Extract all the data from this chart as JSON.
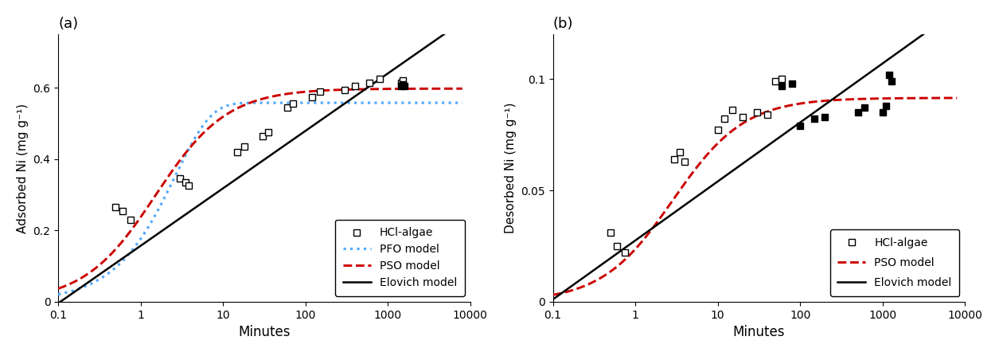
{
  "panel_a": {
    "label": "(a)",
    "ylabel": "Adsorbed Ni (mg g⁻¹)",
    "xlabel": "Minutes",
    "xlim": [
      0.1,
      10000
    ],
    "ylim": [
      0,
      0.75
    ],
    "yticks": [
      0,
      0.2,
      0.4,
      0.6
    ],
    "data_open": [
      [
        0.5,
        0.265
      ],
      [
        0.6,
        0.255
      ],
      [
        0.75,
        0.23
      ],
      [
        3.0,
        0.345
      ],
      [
        3.5,
        0.335
      ],
      [
        3.8,
        0.325
      ],
      [
        15,
        0.42
      ],
      [
        18,
        0.435
      ],
      [
        30,
        0.465
      ],
      [
        35,
        0.475
      ],
      [
        60,
        0.545
      ],
      [
        70,
        0.555
      ],
      [
        120,
        0.575
      ],
      [
        150,
        0.59
      ],
      [
        300,
        0.595
      ],
      [
        400,
        0.605
      ],
      [
        600,
        0.615
      ],
      [
        800,
        0.625
      ],
      [
        1440,
        0.615
      ],
      [
        1500,
        0.62
      ]
    ],
    "data_filled": [
      [
        1440,
        0.605
      ],
      [
        1500,
        0.61
      ],
      [
        1600,
        0.605
      ]
    ],
    "elovich_params": {
      "a": 0.157,
      "b": 0.07
    },
    "pfo_params": {
      "qe": 0.558,
      "k1": 0.38
    },
    "pso_params": {
      "qe": 0.598,
      "k2": 1.1
    },
    "legend_items": [
      "HCl-algae",
      "PFO model",
      "PSO model",
      "Elovich model"
    ]
  },
  "panel_b": {
    "label": "(b)",
    "ylabel": "Desorbed Ni (mg g⁻¹)",
    "xlabel": "Minutes",
    "xlim": [
      0.1,
      10000
    ],
    "ylim": [
      0,
      0.12
    ],
    "yticks": [
      0,
      0.05,
      0.1
    ],
    "data_open": [
      [
        0.5,
        0.031
      ],
      [
        0.6,
        0.025
      ],
      [
        0.75,
        0.022
      ],
      [
        3.0,
        0.064
      ],
      [
        3.5,
        0.067
      ],
      [
        4.0,
        0.063
      ],
      [
        10,
        0.077
      ],
      [
        12,
        0.082
      ],
      [
        15,
        0.086
      ],
      [
        20,
        0.083
      ],
      [
        30,
        0.085
      ],
      [
        40,
        0.084
      ],
      [
        50,
        0.099
      ],
      [
        60,
        0.1
      ]
    ],
    "data_filled": [
      [
        60,
        0.097
      ],
      [
        80,
        0.098
      ],
      [
        100,
        0.079
      ],
      [
        150,
        0.082
      ],
      [
        200,
        0.083
      ],
      [
        500,
        0.085
      ],
      [
        600,
        0.087
      ],
      [
        1000,
        0.085
      ],
      [
        1100,
        0.088
      ],
      [
        1200,
        0.102
      ],
      [
        1300,
        0.099
      ]
    ],
    "elovich_params": {
      "a": 0.0275,
      "b": 0.0115
    },
    "pso_params": {
      "qe": 0.0915,
      "k2": 3.8
    },
    "legend_items": [
      "HCl-algae",
      "PSO model",
      "Elovich model"
    ]
  },
  "figure_bg": "#ffffff",
  "axes_bg": "#ffffff",
  "open_marker": {
    "marker": "s",
    "facecolor": "white",
    "edgecolor": "black",
    "size": 6,
    "linewidth": 1.0
  },
  "filled_marker": {
    "marker": "s",
    "facecolor": "black",
    "edgecolor": "black",
    "size": 6
  },
  "elovich_color": "#000000",
  "pfo_color": "#55aaff",
  "pso_color": "#cc0000",
  "elovich_lw": 1.8,
  "model_lw": 1.8
}
